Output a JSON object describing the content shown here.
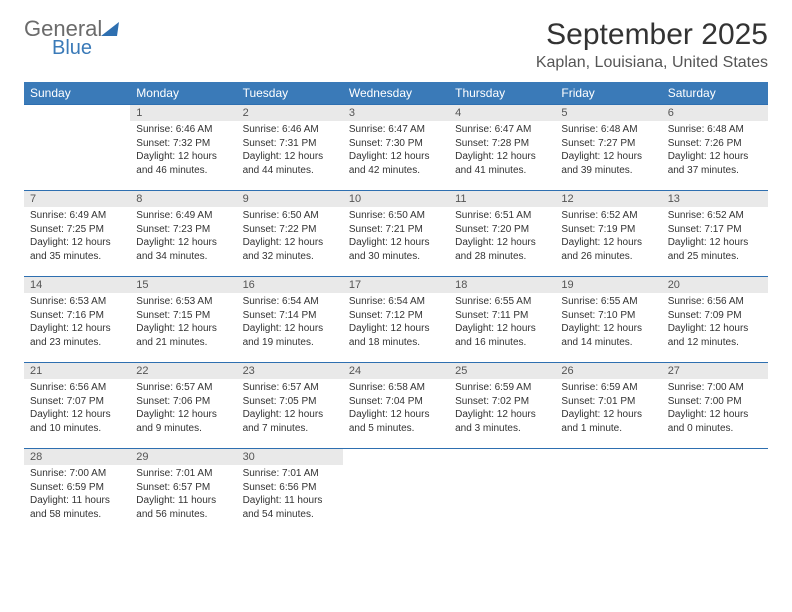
{
  "logo": {
    "word1": "General",
    "word2": "Blue"
  },
  "title": "September 2025",
  "location": "Kaplan, Louisiana, United States",
  "colors": {
    "header_bg": "#3a7ab8",
    "header_text": "#ffffff",
    "daynum_bg": "#e9e9e9",
    "rule": "#2e6fb0",
    "body_text": "#333333",
    "logo_gray": "#6b6b6b",
    "logo_blue": "#3a7ab8"
  },
  "weekdays": [
    "Sunday",
    "Monday",
    "Tuesday",
    "Wednesday",
    "Thursday",
    "Friday",
    "Saturday"
  ],
  "first_weekday_index": 1,
  "days": [
    {
      "n": 1,
      "sunrise": "6:46 AM",
      "sunset": "7:32 PM",
      "daylight": "12 hours and 46 minutes."
    },
    {
      "n": 2,
      "sunrise": "6:46 AM",
      "sunset": "7:31 PM",
      "daylight": "12 hours and 44 minutes."
    },
    {
      "n": 3,
      "sunrise": "6:47 AM",
      "sunset": "7:30 PM",
      "daylight": "12 hours and 42 minutes."
    },
    {
      "n": 4,
      "sunrise": "6:47 AM",
      "sunset": "7:28 PM",
      "daylight": "12 hours and 41 minutes."
    },
    {
      "n": 5,
      "sunrise": "6:48 AM",
      "sunset": "7:27 PM",
      "daylight": "12 hours and 39 minutes."
    },
    {
      "n": 6,
      "sunrise": "6:48 AM",
      "sunset": "7:26 PM",
      "daylight": "12 hours and 37 minutes."
    },
    {
      "n": 7,
      "sunrise": "6:49 AM",
      "sunset": "7:25 PM",
      "daylight": "12 hours and 35 minutes."
    },
    {
      "n": 8,
      "sunrise": "6:49 AM",
      "sunset": "7:23 PM",
      "daylight": "12 hours and 34 minutes."
    },
    {
      "n": 9,
      "sunrise": "6:50 AM",
      "sunset": "7:22 PM",
      "daylight": "12 hours and 32 minutes."
    },
    {
      "n": 10,
      "sunrise": "6:50 AM",
      "sunset": "7:21 PM",
      "daylight": "12 hours and 30 minutes."
    },
    {
      "n": 11,
      "sunrise": "6:51 AM",
      "sunset": "7:20 PM",
      "daylight": "12 hours and 28 minutes."
    },
    {
      "n": 12,
      "sunrise": "6:52 AM",
      "sunset": "7:19 PM",
      "daylight": "12 hours and 26 minutes."
    },
    {
      "n": 13,
      "sunrise": "6:52 AM",
      "sunset": "7:17 PM",
      "daylight": "12 hours and 25 minutes."
    },
    {
      "n": 14,
      "sunrise": "6:53 AM",
      "sunset": "7:16 PM",
      "daylight": "12 hours and 23 minutes."
    },
    {
      "n": 15,
      "sunrise": "6:53 AM",
      "sunset": "7:15 PM",
      "daylight": "12 hours and 21 minutes."
    },
    {
      "n": 16,
      "sunrise": "6:54 AM",
      "sunset": "7:14 PM",
      "daylight": "12 hours and 19 minutes."
    },
    {
      "n": 17,
      "sunrise": "6:54 AM",
      "sunset": "7:12 PM",
      "daylight": "12 hours and 18 minutes."
    },
    {
      "n": 18,
      "sunrise": "6:55 AM",
      "sunset": "7:11 PM",
      "daylight": "12 hours and 16 minutes."
    },
    {
      "n": 19,
      "sunrise": "6:55 AM",
      "sunset": "7:10 PM",
      "daylight": "12 hours and 14 minutes."
    },
    {
      "n": 20,
      "sunrise": "6:56 AM",
      "sunset": "7:09 PM",
      "daylight": "12 hours and 12 minutes."
    },
    {
      "n": 21,
      "sunrise": "6:56 AM",
      "sunset": "7:07 PM",
      "daylight": "12 hours and 10 minutes."
    },
    {
      "n": 22,
      "sunrise": "6:57 AM",
      "sunset": "7:06 PM",
      "daylight": "12 hours and 9 minutes."
    },
    {
      "n": 23,
      "sunrise": "6:57 AM",
      "sunset": "7:05 PM",
      "daylight": "12 hours and 7 minutes."
    },
    {
      "n": 24,
      "sunrise": "6:58 AM",
      "sunset": "7:04 PM",
      "daylight": "12 hours and 5 minutes."
    },
    {
      "n": 25,
      "sunrise": "6:59 AM",
      "sunset": "7:02 PM",
      "daylight": "12 hours and 3 minutes."
    },
    {
      "n": 26,
      "sunrise": "6:59 AM",
      "sunset": "7:01 PM",
      "daylight": "12 hours and 1 minute."
    },
    {
      "n": 27,
      "sunrise": "7:00 AM",
      "sunset": "7:00 PM",
      "daylight": "12 hours and 0 minutes."
    },
    {
      "n": 28,
      "sunrise": "7:00 AM",
      "sunset": "6:59 PM",
      "daylight": "11 hours and 58 minutes."
    },
    {
      "n": 29,
      "sunrise": "7:01 AM",
      "sunset": "6:57 PM",
      "daylight": "11 hours and 56 minutes."
    },
    {
      "n": 30,
      "sunrise": "7:01 AM",
      "sunset": "6:56 PM",
      "daylight": "11 hours and 54 minutes."
    }
  ],
  "labels": {
    "sunrise_prefix": "Sunrise: ",
    "sunset_prefix": "Sunset: ",
    "daylight_prefix": "Daylight: "
  }
}
